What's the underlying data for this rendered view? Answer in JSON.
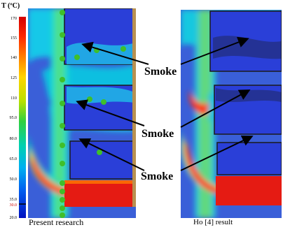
{
  "scale": {
    "unit_label": "T (ºC)",
    "ticks": [
      "170",
      "155",
      "140",
      "125",
      "110",
      "95.0",
      "80.0",
      "65.0",
      "50.0",
      "35.0",
      "30.0",
      "20.0"
    ],
    "highlight_tick_color": "#d00000"
  },
  "captions": {
    "left": "Present research",
    "right": "Ho [4]  result"
  },
  "annotations": {
    "smoke_1": "Smoke",
    "smoke_2": "Smoke",
    "smoke_3": "Smoke"
  },
  "colors": {
    "hot": "#e51b13",
    "warm": "#f0c800",
    "mild": "#30c050",
    "cool": "#00b8e8",
    "cold": "#2a3fd8",
    "frame": "#1a1a1a",
    "probe": "#3fbf2a"
  }
}
